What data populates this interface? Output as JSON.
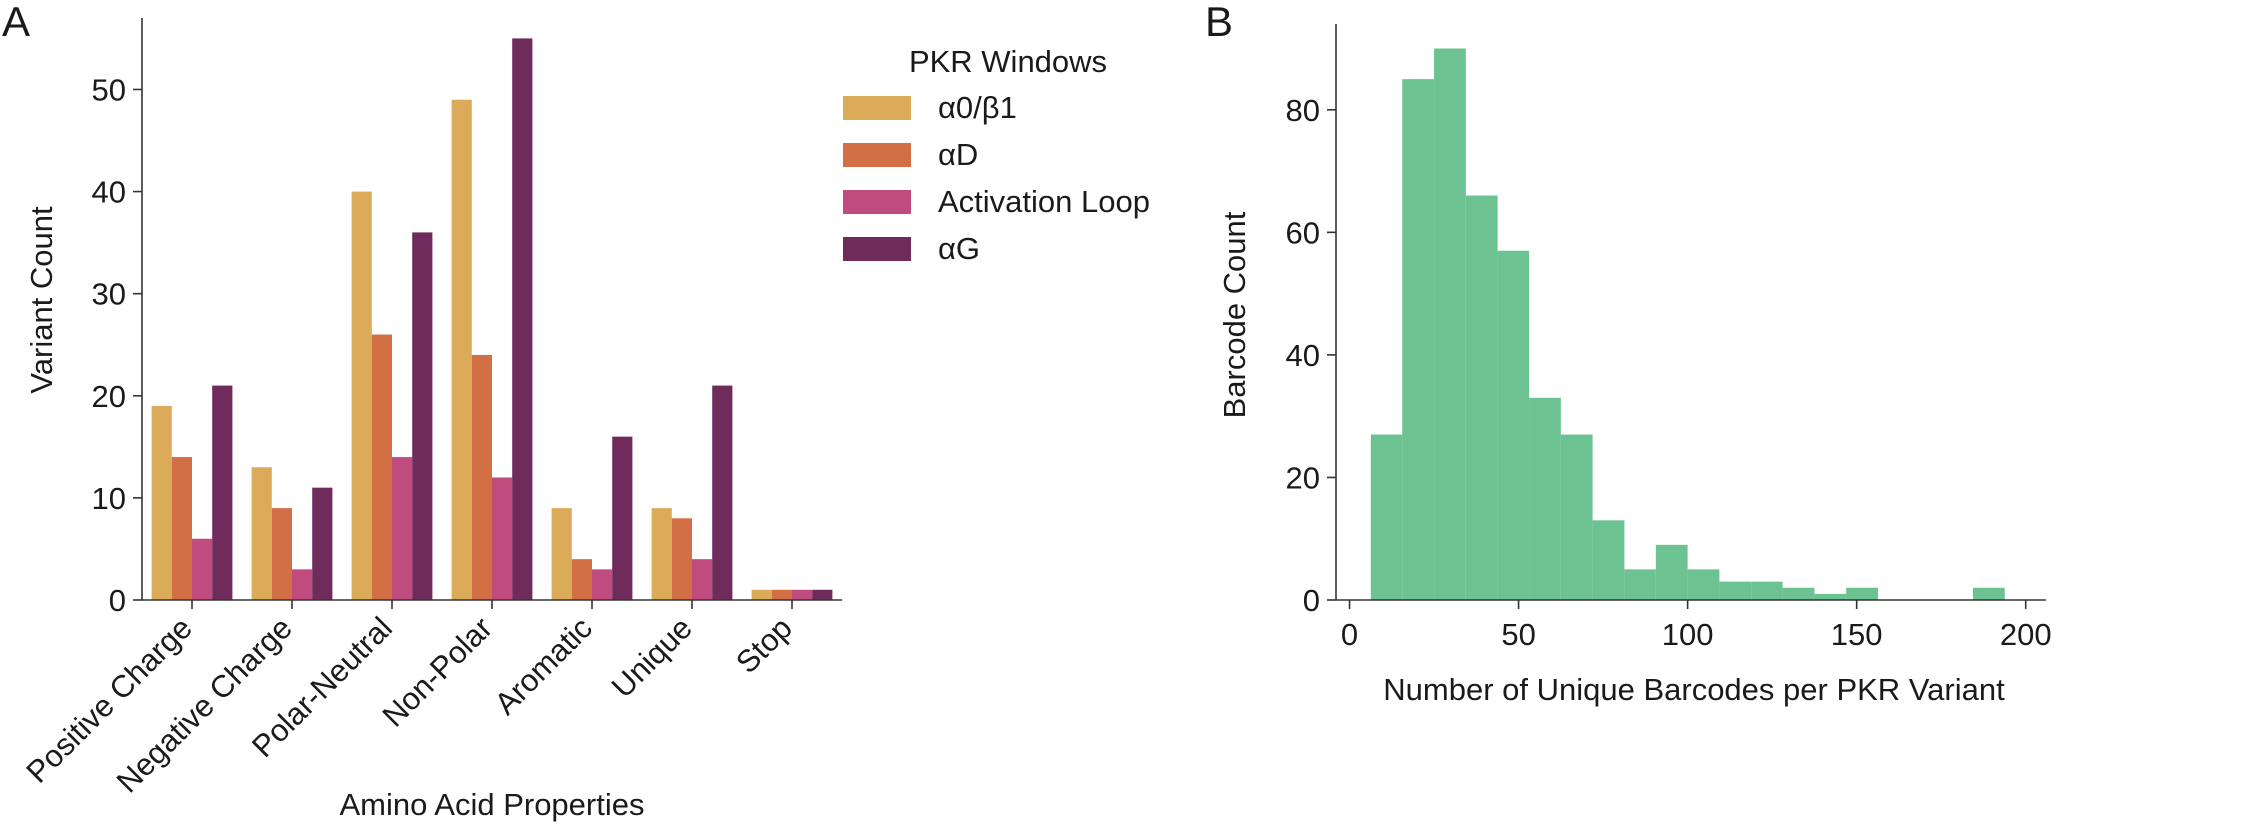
{
  "panel_labels": {
    "a": "A",
    "b": "B"
  },
  "chart_data": [
    {
      "type": "bar",
      "xlabel": "Amino Acid Properties",
      "ylabel": "Variant Count",
      "ylim": [
        0,
        57
      ],
      "yticks": [
        0,
        10,
        20,
        30,
        40,
        50
      ],
      "categories": [
        "Positive Charge",
        "Negative Charge",
        "Polar-Neutral",
        "Non-Polar",
        "Aromatic",
        "Unique",
        "Stop"
      ],
      "legend": {
        "title": "PKR Windows",
        "placement": "top-right"
      },
      "series": [
        {
          "name": "α0/β1",
          "color": "#dcab59",
          "values": [
            19,
            13,
            40,
            49,
            9,
            9,
            1
          ]
        },
        {
          "name": "αD",
          "color": "#d36f45",
          "values": [
            14,
            9,
            26,
            24,
            4,
            8,
            1
          ]
        },
        {
          "name": "Activation Loop",
          "color": "#c04b7e",
          "values": [
            6,
            3,
            14,
            12,
            3,
            4,
            1
          ]
        },
        {
          "name": "αG",
          "color": "#6f2b5c",
          "values": [
            21,
            11,
            36,
            55,
            16,
            21,
            1
          ]
        }
      ],
      "grid": false
    },
    {
      "type": "histogram",
      "xlabel": "Number of Unique Barcodes per PKR Variant",
      "ylabel": "Barcode Count",
      "xlim": [
        -4,
        206
      ],
      "ylim": [
        0,
        94
      ],
      "xticks": [
        0,
        50,
        100,
        150,
        200
      ],
      "yticks": [
        0,
        20,
        40,
        60,
        80
      ],
      "color": "#6cc291",
      "bins": [
        {
          "x0": 6.3,
          "x1": 15.6,
          "count": 27
        },
        {
          "x0": 15.6,
          "x1": 25.0,
          "count": 85
        },
        {
          "x0": 25.0,
          "x1": 34.4,
          "count": 90
        },
        {
          "x0": 34.4,
          "x1": 43.8,
          "count": 66
        },
        {
          "x0": 43.8,
          "x1": 53.1,
          "count": 57
        },
        {
          "x0": 53.1,
          "x1": 62.5,
          "count": 33
        },
        {
          "x0": 62.5,
          "x1": 71.9,
          "count": 27
        },
        {
          "x0": 71.9,
          "x1": 81.3,
          "count": 13
        },
        {
          "x0": 81.3,
          "x1": 90.6,
          "count": 5
        },
        {
          "x0": 90.6,
          "x1": 100.0,
          "count": 9
        },
        {
          "x0": 100.0,
          "x1": 109.4,
          "count": 5
        },
        {
          "x0": 109.4,
          "x1": 118.8,
          "count": 3
        },
        {
          "x0": 118.8,
          "x1": 128.1,
          "count": 3
        },
        {
          "x0": 128.1,
          "x1": 137.5,
          "count": 2
        },
        {
          "x0": 137.5,
          "x1": 146.9,
          "count": 1
        },
        {
          "x0": 146.9,
          "x1": 156.3,
          "count": 2
        },
        {
          "x0": 156.3,
          "x1": 165.6,
          "count": 0
        },
        {
          "x0": 165.6,
          "x1": 175.0,
          "count": 0
        },
        {
          "x0": 175.0,
          "x1": 184.4,
          "count": 0
        },
        {
          "x0": 184.4,
          "x1": 193.8,
          "count": 2
        }
      ],
      "grid": false
    }
  ]
}
